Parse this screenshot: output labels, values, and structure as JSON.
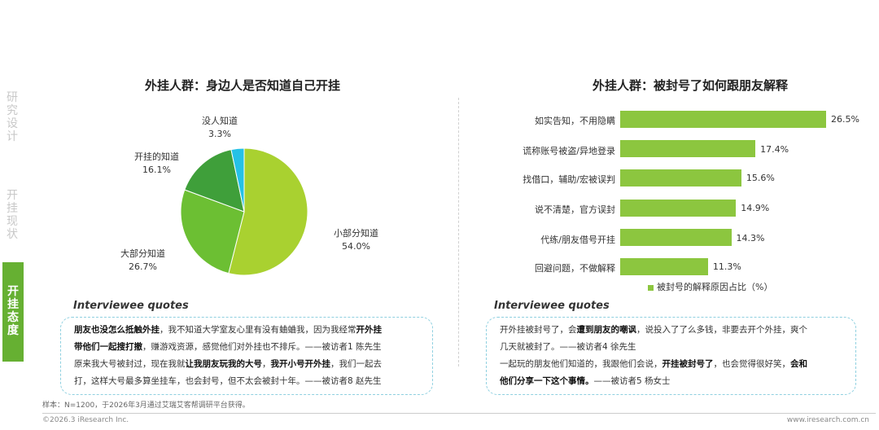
{
  "sidebar": {
    "items": [
      {
        "label": "研究设计",
        "active": false
      },
      {
        "label": "开挂现状",
        "active": false
      },
      {
        "label": "开挂态度",
        "active": true
      }
    ]
  },
  "left_panel": {
    "title": "外挂人群：身边人是否知道自己开挂"
  },
  "right_panel": {
    "title": "外挂人群：被封号了如何跟朋友解释",
    "legend": "被封号的解释原因占比（%）"
  },
  "chart_data": [
    {
      "type": "pie",
      "title": "外挂人群：身边人是否知道自己开挂",
      "slices": [
        {
          "label": "小部分知道",
          "value": 54.0,
          "display": "54.0%",
          "color": "#a9d130"
        },
        {
          "label": "大部分知道",
          "value": 26.7,
          "display": "26.7%",
          "color": "#6cbf33"
        },
        {
          "label": "开挂的知道",
          "value": 16.1,
          "display": "16.1%",
          "color": "#3f9f3a"
        },
        {
          "label": "没人知道",
          "value": 3.3,
          "display": "3.3%",
          "color": "#25c1e6"
        }
      ]
    },
    {
      "type": "bar",
      "orientation": "horizontal",
      "title": "外挂人群：被封号了如何跟朋友解释",
      "categories": [
        "如实告知，不用隐瞒",
        "谎称账号被盗/异地登录",
        "找借口，辅助/宏被误判",
        "说不清楚，官方误封",
        "代练/朋友借号开挂",
        "回避问题，不做解释"
      ],
      "values": [
        26.5,
        17.4,
        15.6,
        14.9,
        14.3,
        11.3
      ],
      "labels": [
        "26.5%",
        "17.4%",
        "15.6%",
        "14.9%",
        "14.3%",
        "11.3%"
      ],
      "legend": "被封号的解释原因占比（%）",
      "color": "#8cc63f",
      "xlim": [
        0,
        26.5
      ]
    }
  ],
  "quotes": {
    "left": {
      "heading": "Interviewee quotes",
      "lines": [
        [
          {
            "t": "朋友也没怎么抵触外挂",
            "b": true
          },
          {
            "t": "，我不知道大学室友心里有没有蛐蛐我，因为我经常",
            "b": false
          },
          {
            "t": "开外挂",
            "b": true
          }
        ],
        [
          {
            "t": "带他们一起搜打撤",
            "b": true
          },
          {
            "t": "，赚游戏资源，感觉他们对外挂也不排斥。——被访者1 陈先生",
            "b": false
          }
        ],
        [
          {
            "t": "原来我大号被封过，现在我就",
            "b": false
          },
          {
            "t": "让我朋友玩我的大号",
            "b": true
          },
          {
            "t": "，",
            "b": false
          },
          {
            "t": "我开小号开外挂",
            "b": true
          },
          {
            "t": "，我们一起去",
            "b": false
          }
        ],
        [
          {
            "t": "打，这样大号最多算坐挂车，也会封号，但不太会被封十年。——被访者8 赵先生",
            "b": false
          }
        ]
      ]
    },
    "right": {
      "heading": "Interviewee quotes",
      "lines": [
        [
          {
            "t": "开外挂被封号了，会",
            "b": false
          },
          {
            "t": "遭到朋友的嘲讽",
            "b": true
          },
          {
            "t": "，说投入了了么多钱，非要去开个外挂，爽个",
            "b": false
          }
        ],
        [
          {
            "t": "几天就被封了。",
            "b": false
          },
          {
            "t": "——被访者4 徐先生",
            "b": false
          }
        ],
        [
          {
            "t": "一起玩的朋友他们知道的，我跟他们会说，",
            "b": false
          },
          {
            "t": "开挂被封号了",
            "b": true
          },
          {
            "t": "，也会觉得很好笑，",
            "b": false
          },
          {
            "t": "会和",
            "b": true
          }
        ],
        [
          {
            "t": "他们分享一下这个事情。",
            "b": true
          },
          {
            "t": "——被访者5 杨女士",
            "b": false
          }
        ]
      ]
    }
  },
  "footnote": "样本：N=1200，于2026年3月通过艾瑞艾客帮调研平台获得。",
  "footer": {
    "copyright": "©2026.3 iResearch Inc.",
    "website": "www.iresearch.com.cn"
  }
}
